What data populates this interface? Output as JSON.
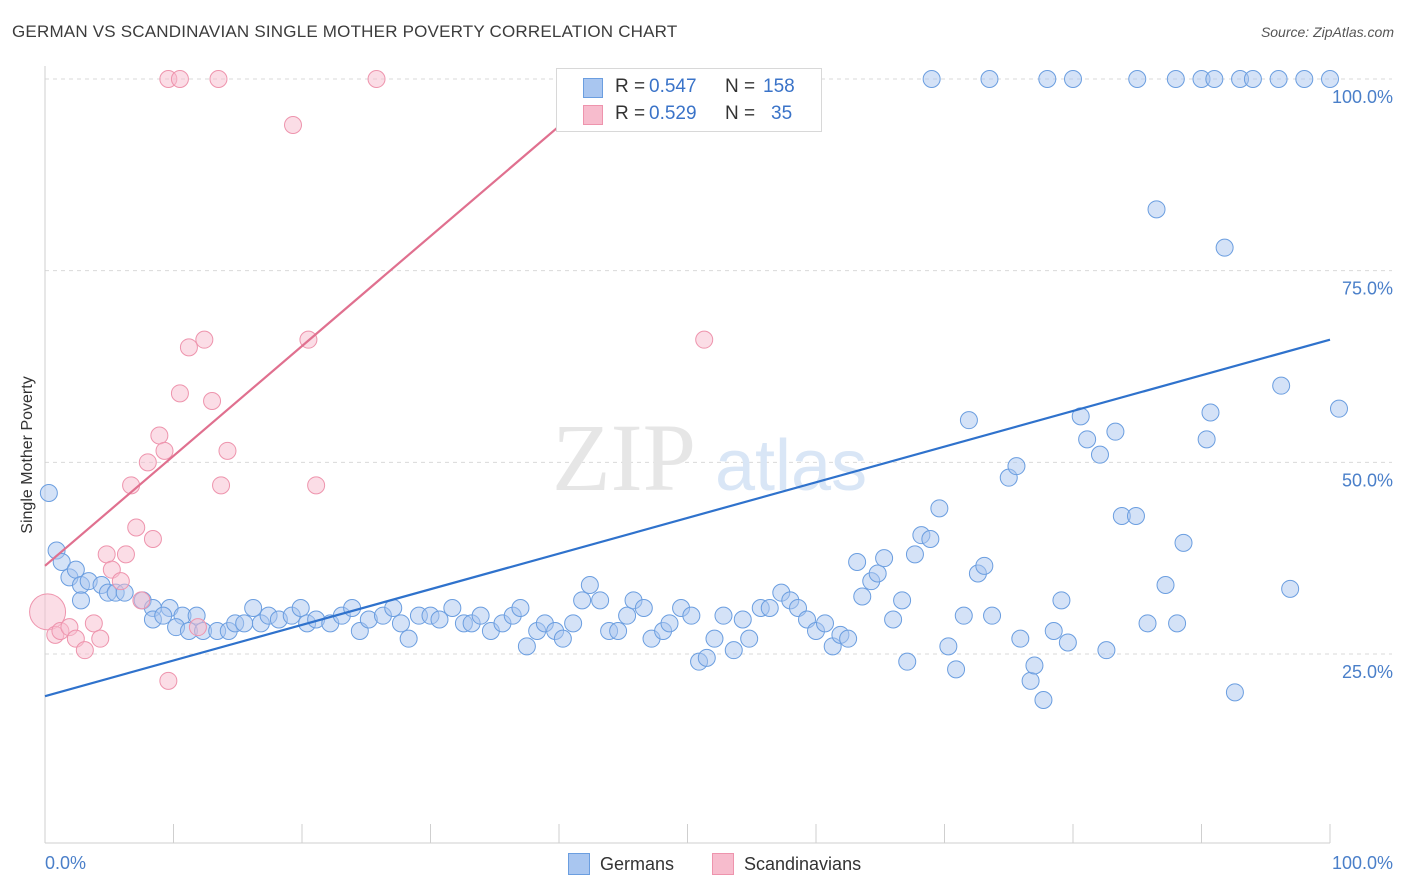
{
  "title": "GERMAN VS SCANDINAVIAN SINGLE MOTHER POVERTY CORRELATION CHART",
  "source": "Source: ZipAtlas.com",
  "watermark": {
    "zip": "ZIP",
    "atlas": "atlas"
  },
  "stats": {
    "german": {
      "r_label": "R =",
      "r_value": "0.547",
      "n_label": "N =",
      "n_value": "158"
    },
    "scandinavian": {
      "r_label": "R =",
      "r_value": "0.529",
      "n_label": "N =",
      "n_value": "35"
    }
  },
  "legend": {
    "german": "Germans",
    "scandinavian": "Scandinavians"
  },
  "colors": {
    "german_fill": "#a9c6f0",
    "german_stroke": "#6b9ee0",
    "german_line": "#2f72cc",
    "scand_fill": "#f7bccd",
    "scand_stroke": "#ee94ad",
    "scand_line": "#e0708f",
    "tick_label": "#4a7fc9",
    "grid": "#d9d9d9"
  },
  "chart_data": {
    "type": "scatter",
    "title": "GERMAN VS SCANDINAVIAN SINGLE MOTHER POVERTY CORRELATION CHART",
    "xlabel": "",
    "ylabel": "Single Mother Poverty",
    "xlim": [
      0,
      100
    ],
    "ylim": [
      0,
      105
    ],
    "x_tick_labels": [
      "0.0%",
      "100.0%"
    ],
    "y_ticks": [
      25,
      50,
      75,
      100
    ],
    "y_tick_labels": [
      "25.0%",
      "50.0%",
      "75.0%",
      "100.0%"
    ],
    "grid": "horizontal dashed",
    "legend_position": "bottom-center",
    "series": [
      {
        "name": "Germans",
        "trend": {
          "x": [
            0,
            100
          ],
          "y": [
            19.5,
            66.0
          ]
        },
        "points": [
          [
            0.3,
            46
          ],
          [
            0.9,
            38.5
          ],
          [
            1.3,
            37
          ],
          [
            1.9,
            35
          ],
          [
            2.4,
            36
          ],
          [
            2.8,
            34
          ],
          [
            3.4,
            34.5
          ],
          [
            4.4,
            34
          ],
          [
            4.9,
            33
          ],
          [
            5.5,
            33
          ],
          [
            6.2,
            33
          ],
          [
            2.8,
            32
          ],
          [
            7.6,
            32
          ],
          [
            8.4,
            31
          ],
          [
            9.7,
            31
          ],
          [
            10.7,
            30
          ],
          [
            11.8,
            30
          ],
          [
            8.4,
            29.5
          ],
          [
            9.2,
            30
          ],
          [
            10.2,
            28.5
          ],
          [
            11.2,
            28
          ],
          [
            12.3,
            28
          ],
          [
            13.4,
            28
          ],
          [
            14.3,
            28
          ],
          [
            14.8,
            29
          ],
          [
            15.5,
            29
          ],
          [
            16.2,
            31
          ],
          [
            16.8,
            29
          ],
          [
            17.4,
            30
          ],
          [
            18.2,
            29.5
          ],
          [
            19.2,
            30
          ],
          [
            19.9,
            31
          ],
          [
            20.4,
            29
          ],
          [
            21.1,
            29.5
          ],
          [
            22.2,
            29
          ],
          [
            23.1,
            30
          ],
          [
            23.9,
            31
          ],
          [
            24.5,
            28
          ],
          [
            25.2,
            29.5
          ],
          [
            26.3,
            30
          ],
          [
            27.1,
            31
          ],
          [
            27.7,
            29
          ],
          [
            28.3,
            27
          ],
          [
            29.1,
            30
          ],
          [
            30.0,
            30
          ],
          [
            30.7,
            29.5
          ],
          [
            31.7,
            31
          ],
          [
            32.6,
            29
          ],
          [
            33.2,
            29
          ],
          [
            33.9,
            30
          ],
          [
            34.7,
            28
          ],
          [
            35.6,
            29
          ],
          [
            36.4,
            30
          ],
          [
            37.0,
            31
          ],
          [
            37.5,
            26
          ],
          [
            38.3,
            28
          ],
          [
            38.9,
            29
          ],
          [
            39.7,
            28
          ],
          [
            40.3,
            27
          ],
          [
            41.1,
            29
          ],
          [
            41.8,
            32
          ],
          [
            42.4,
            34
          ],
          [
            43.2,
            32
          ],
          [
            43.9,
            28
          ],
          [
            44.6,
            28
          ],
          [
            45.3,
            30
          ],
          [
            45.8,
            32
          ],
          [
            46.6,
            31
          ],
          [
            47.2,
            27
          ],
          [
            48.1,
            28
          ],
          [
            48.6,
            29
          ],
          [
            49.5,
            31
          ],
          [
            50.3,
            30
          ],
          [
            50.9,
            24
          ],
          [
            51.5,
            24.5
          ],
          [
            52.1,
            27
          ],
          [
            52.8,
            30
          ],
          [
            53.6,
            25.5
          ],
          [
            54.3,
            29.5
          ],
          [
            54.8,
            27
          ],
          [
            55.7,
            31
          ],
          [
            56.4,
            31
          ],
          [
            57.3,
            33
          ],
          [
            58.0,
            32
          ],
          [
            58.6,
            31
          ],
          [
            59.3,
            29.5
          ],
          [
            60.0,
            28
          ],
          [
            60.7,
            29
          ],
          [
            61.3,
            26
          ],
          [
            61.9,
            27.5
          ],
          [
            62.5,
            27
          ],
          [
            63.2,
            37
          ],
          [
            63.6,
            32.5
          ],
          [
            64.3,
            34.5
          ],
          [
            64.8,
            35.5
          ],
          [
            65.3,
            37.5
          ],
          [
            66.0,
            29.5
          ],
          [
            66.7,
            32
          ],
          [
            67.1,
            24
          ],
          [
            67.7,
            38
          ],
          [
            68.2,
            40.5
          ],
          [
            68.9,
            40
          ],
          [
            69.6,
            44
          ],
          [
            70.3,
            26
          ],
          [
            70.9,
            23
          ],
          [
            71.5,
            30
          ],
          [
            71.9,
            55.5
          ],
          [
            72.6,
            35.5
          ],
          [
            73.1,
            36.5
          ],
          [
            73.7,
            30
          ],
          [
            75.0,
            48
          ],
          [
            75.6,
            49.5
          ],
          [
            75.9,
            27
          ],
          [
            76.7,
            21.5
          ],
          [
            77.0,
            23.5
          ],
          [
            77.7,
            19
          ],
          [
            78.5,
            28
          ],
          [
            79.1,
            32
          ],
          [
            79.6,
            26.5
          ],
          [
            80.6,
            56
          ],
          [
            81.1,
            53
          ],
          [
            82.1,
            51
          ],
          [
            82.6,
            25.5
          ],
          [
            83.3,
            54
          ],
          [
            83.8,
            43
          ],
          [
            84.9,
            43
          ],
          [
            85.8,
            29
          ],
          [
            86.5,
            83
          ],
          [
            87.2,
            34
          ],
          [
            88.1,
            29
          ],
          [
            88.6,
            39.5
          ],
          [
            90.4,
            53
          ],
          [
            90.7,
            56.5
          ],
          [
            91.8,
            78
          ],
          [
            92.6,
            20
          ],
          [
            96.2,
            60
          ],
          [
            96.9,
            33.5
          ],
          [
            100.7,
            57
          ],
          [
            69,
            100
          ],
          [
            73.5,
            100
          ],
          [
            78,
            100
          ],
          [
            80,
            100
          ],
          [
            85,
            100
          ],
          [
            88,
            100
          ],
          [
            90,
            100
          ],
          [
            91,
            100
          ],
          [
            93,
            100
          ],
          [
            94,
            100
          ],
          [
            96,
            100
          ],
          [
            98,
            100
          ],
          [
            100,
            100
          ]
        ]
      },
      {
        "name": "Scandinavians",
        "trend": {
          "x": [
            0,
            44.3
          ],
          "y": [
            36.5,
            100.0
          ]
        },
        "points": [
          [
            0.2,
            30.5
          ],
          [
            0.8,
            27.5
          ],
          [
            1.2,
            28
          ],
          [
            1.9,
            28.5
          ],
          [
            2.4,
            27
          ],
          [
            3.1,
            25.5
          ],
          [
            3.8,
            29
          ],
          [
            4.3,
            27
          ],
          [
            4.8,
            38
          ],
          [
            5.2,
            36
          ],
          [
            5.9,
            34.5
          ],
          [
            6.3,
            38
          ],
          [
            6.7,
            47
          ],
          [
            7.1,
            41.5
          ],
          [
            7.5,
            32
          ],
          [
            8.0,
            50
          ],
          [
            8.4,
            40
          ],
          [
            8.9,
            53.5
          ],
          [
            9.3,
            51.5
          ],
          [
            9.6,
            21.5
          ],
          [
            10.5,
            59
          ],
          [
            11.2,
            65
          ],
          [
            11.9,
            28.5
          ],
          [
            12.4,
            66
          ],
          [
            13.0,
            58
          ],
          [
            13.7,
            47
          ],
          [
            14.2,
            51.5
          ],
          [
            19.3,
            94
          ],
          [
            20.5,
            66
          ],
          [
            21.1,
            47
          ],
          [
            9.6,
            100
          ],
          [
            10.5,
            100
          ],
          [
            13.5,
            100
          ],
          [
            25.8,
            100
          ],
          [
            51.3,
            66
          ]
        ]
      }
    ]
  }
}
